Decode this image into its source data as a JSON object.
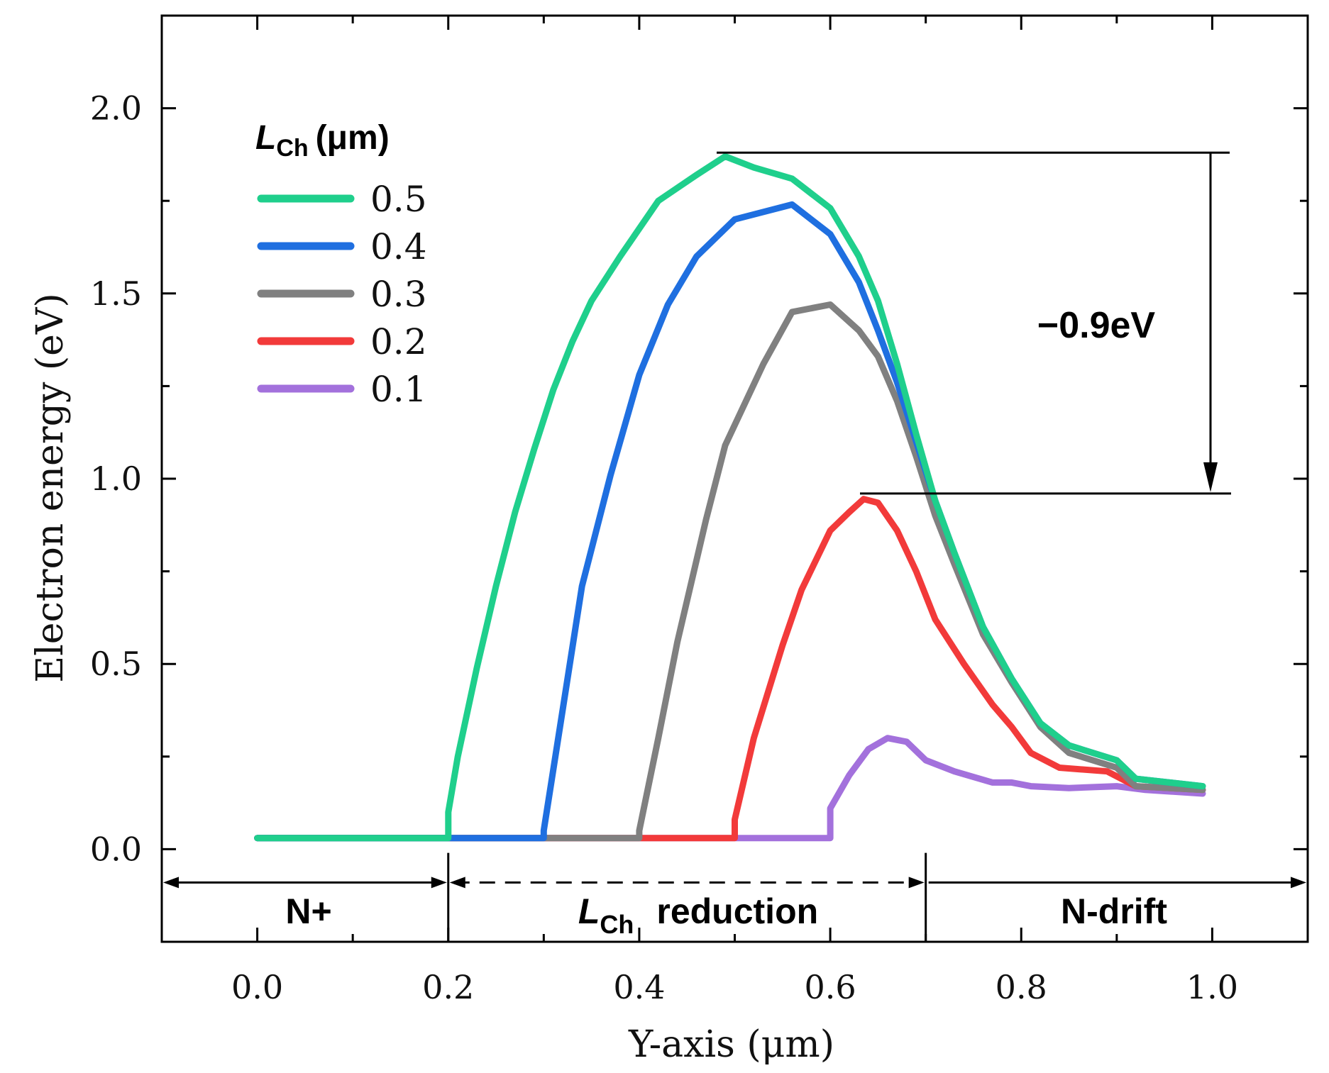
{
  "chart_data": {
    "type": "line",
    "title": "",
    "xlabel": "Y-axis (μm)",
    "ylabel": "Electron energy (eV)",
    "xlim": [
      -0.1,
      1.1
    ],
    "ylim": [
      -0.25,
      2.25
    ],
    "x_ticks": [
      "0.0",
      "0.2",
      "0.4",
      "0.6",
      "0.8",
      "1.0"
    ],
    "y_ticks": [
      "0.0",
      "0.5",
      "1.0",
      "1.5",
      "2.0"
    ],
    "legend_title_main": "L",
    "legend_title_sub": "Ch",
    "legend_title_unit": "(μm)",
    "legend_position": "top-left",
    "series": [
      {
        "name": "0.5",
        "color": "#1fcf8c",
        "x": [
          0.0,
          0.2,
          0.2,
          0.21,
          0.23,
          0.25,
          0.27,
          0.29,
          0.31,
          0.33,
          0.35,
          0.38,
          0.42,
          0.46,
          0.49,
          0.52,
          0.56,
          0.6,
          0.63,
          0.65,
          0.67,
          0.69,
          0.71,
          0.73,
          0.76,
          0.79,
          0.82,
          0.85,
          0.9,
          0.92,
          0.99
        ],
        "y": [
          0.03,
          0.03,
          0.1,
          0.25,
          0.49,
          0.71,
          0.91,
          1.08,
          1.24,
          1.37,
          1.48,
          1.6,
          1.75,
          1.82,
          1.87,
          1.84,
          1.81,
          1.73,
          1.6,
          1.48,
          1.31,
          1.12,
          0.94,
          0.8,
          0.6,
          0.46,
          0.34,
          0.28,
          0.24,
          0.19,
          0.17
        ]
      },
      {
        "name": "0.4",
        "color": "#1f6fe0",
        "x": [
          0.0,
          0.3,
          0.3,
          0.32,
          0.34,
          0.37,
          0.4,
          0.43,
          0.46,
          0.5,
          0.56,
          0.6,
          0.63,
          0.65,
          0.67,
          0.69,
          0.71,
          0.73,
          0.76,
          0.79,
          0.82,
          0.85,
          0.9,
          0.92,
          0.99
        ],
        "y": [
          0.03,
          0.03,
          0.05,
          0.38,
          0.71,
          1.01,
          1.28,
          1.47,
          1.6,
          1.7,
          1.74,
          1.66,
          1.53,
          1.4,
          1.26,
          1.1,
          0.94,
          0.8,
          0.6,
          0.46,
          0.34,
          0.28,
          0.24,
          0.19,
          0.17
        ]
      },
      {
        "name": "0.3",
        "color": "#808080",
        "x": [
          0.0,
          0.4,
          0.4,
          0.42,
          0.44,
          0.47,
          0.49,
          0.53,
          0.56,
          0.6,
          0.63,
          0.65,
          0.67,
          0.69,
          0.71,
          0.73,
          0.76,
          0.79,
          0.82,
          0.85,
          0.9,
          0.92,
          0.99
        ],
        "y": [
          0.03,
          0.03,
          0.05,
          0.3,
          0.56,
          0.89,
          1.09,
          1.31,
          1.45,
          1.47,
          1.4,
          1.33,
          1.21,
          1.06,
          0.9,
          0.77,
          0.58,
          0.45,
          0.33,
          0.26,
          0.22,
          0.17,
          0.16
        ]
      },
      {
        "name": "0.2",
        "color": "#f23a3a",
        "x": [
          0.0,
          0.5,
          0.5,
          0.52,
          0.55,
          0.57,
          0.6,
          0.62,
          0.635,
          0.65,
          0.67,
          0.69,
          0.71,
          0.74,
          0.77,
          0.79,
          0.81,
          0.84,
          0.89,
          0.92,
          0.99
        ],
        "y": [
          0.03,
          0.03,
          0.08,
          0.3,
          0.55,
          0.7,
          0.86,
          0.91,
          0.945,
          0.935,
          0.86,
          0.75,
          0.62,
          0.5,
          0.39,
          0.33,
          0.26,
          0.22,
          0.21,
          0.17,
          0.16
        ]
      },
      {
        "name": "0.1",
        "color": "#a371dc",
        "x": [
          0.0,
          0.6,
          0.6,
          0.62,
          0.64,
          0.66,
          0.68,
          0.7,
          0.73,
          0.77,
          0.79,
          0.81,
          0.85,
          0.9,
          0.93,
          0.99
        ],
        "y": [
          0.03,
          0.03,
          0.11,
          0.2,
          0.27,
          0.3,
          0.29,
          0.24,
          0.21,
          0.18,
          0.18,
          0.17,
          0.165,
          0.17,
          0.16,
          0.15
        ]
      }
    ],
    "annotations": {
      "barrier_drop": "−0.9eV",
      "barrier_top_y": 1.88,
      "barrier_bottom_y": 0.96,
      "region_n_plus": "N+",
      "region_reduction_main": "L",
      "region_reduction_sub": "Ch",
      "region_reduction_rest": "reduction",
      "region_n_drift": "N-drift",
      "region_boundaries": [
        0.2,
        0.7
      ]
    }
  }
}
